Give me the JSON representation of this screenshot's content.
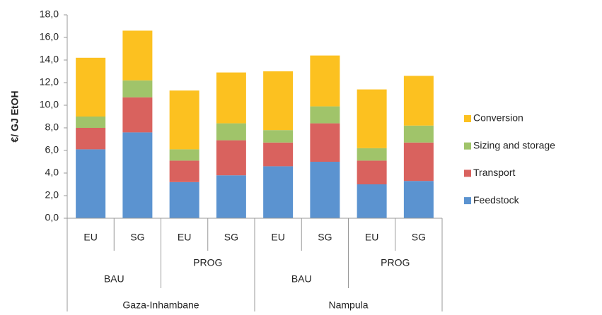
{
  "chart_data": {
    "type": "stacked_bar",
    "y_label": "€/ GJ EtOH",
    "categories": [
      "EU",
      "SG",
      "EU",
      "SG",
      "EU",
      "SG",
      "EU",
      "SG"
    ],
    "category_groups": [
      [
        "BAU",
        "PROG",
        "BAU",
        "PROG"
      ],
      [
        "Gaza-Inhambane",
        "Nampula"
      ]
    ],
    "series": [
      {
        "name": "Feedstock",
        "color": "#5b93d0",
        "values": [
          6.1,
          7.6,
          3.2,
          3.8,
          4.6,
          5.0,
          3.0,
          3.3
        ]
      },
      {
        "name": "Transport",
        "color": "#d9625e",
        "values": [
          1.9,
          3.1,
          1.9,
          3.1,
          2.1,
          3.4,
          2.1,
          3.4
        ]
      },
      {
        "name": "Sizing and storage",
        "color": "#a0c46a",
        "values": [
          1.0,
          1.5,
          1.0,
          1.5,
          1.1,
          1.5,
          1.1,
          1.5
        ]
      },
      {
        "name": "Conversion",
        "color": "#fcc120",
        "values": [
          5.2,
          4.4,
          5.2,
          4.5,
          5.2,
          4.5,
          5.2,
          4.4
        ]
      }
    ],
    "ylim": [
      0,
      18
    ],
    "yticks": [
      {
        "value": 0,
        "label": "0,0"
      },
      {
        "value": 2,
        "label": "2,0"
      },
      {
        "value": 4,
        "label": "4,0"
      },
      {
        "value": 6,
        "label": "6,0"
      },
      {
        "value": 8,
        "label": "8,0"
      },
      {
        "value": 10,
        "label": "10,0"
      },
      {
        "value": 12,
        "label": "12,0"
      },
      {
        "value": 14,
        "label": "14,0"
      },
      {
        "value": 16,
        "label": "16,0"
      },
      {
        "value": 18,
        "label": "18,0"
      }
    ],
    "legend": "right"
  }
}
